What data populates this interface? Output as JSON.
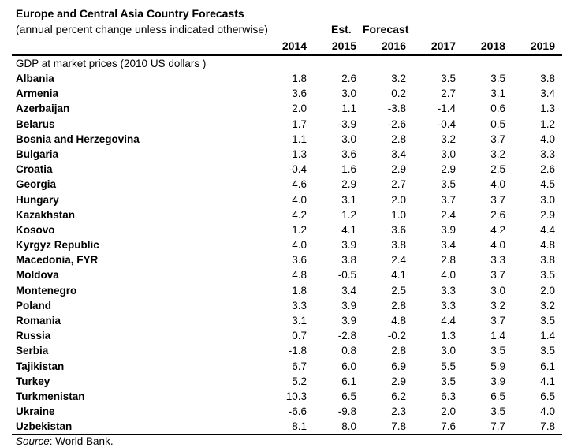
{
  "title": "Europe and Central Asia Country Forecasts",
  "subtitle": "(annual percent change unless indicated otherwise)",
  "header_est": "Est.",
  "header_forecast": "Forecast",
  "years": [
    "2014",
    "2015",
    "2016",
    "2017",
    "2018",
    "2019"
  ],
  "section_label": "GDP at market prices (2010 US dollars )",
  "rows": [
    {
      "country": "Albania",
      "values": [
        "1.8",
        "2.6",
        "3.2",
        "3.5",
        "3.5",
        "3.8"
      ]
    },
    {
      "country": "Armenia",
      "values": [
        "3.6",
        "3.0",
        "0.2",
        "2.7",
        "3.1",
        "3.4"
      ]
    },
    {
      "country": "Azerbaijan",
      "values": [
        "2.0",
        "1.1",
        "-3.8",
        "-1.4",
        "0.6",
        "1.3"
      ]
    },
    {
      "country": "Belarus",
      "values": [
        "1.7",
        "-3.9",
        "-2.6",
        "-0.4",
        "0.5",
        "1.2"
      ]
    },
    {
      "country": "Bosnia and Herzegovina",
      "values": [
        "1.1",
        "3.0",
        "2.8",
        "3.2",
        "3.7",
        "4.0"
      ]
    },
    {
      "country": "Bulgaria",
      "values": [
        "1.3",
        "3.6",
        "3.4",
        "3.0",
        "3.2",
        "3.3"
      ]
    },
    {
      "country": "Croatia",
      "values": [
        "-0.4",
        "1.6",
        "2.9",
        "2.9",
        "2.5",
        "2.6"
      ]
    },
    {
      "country": "Georgia",
      "values": [
        "4.6",
        "2.9",
        "2.7",
        "3.5",
        "4.0",
        "4.5"
      ]
    },
    {
      "country": "Hungary",
      "values": [
        "4.0",
        "3.1",
        "2.0",
        "3.7",
        "3.7",
        "3.0"
      ]
    },
    {
      "country": "Kazakhstan",
      "values": [
        "4.2",
        "1.2",
        "1.0",
        "2.4",
        "2.6",
        "2.9"
      ]
    },
    {
      "country": "Kosovo",
      "values": [
        "1.2",
        "4.1",
        "3.6",
        "3.9",
        "4.2",
        "4.4"
      ]
    },
    {
      "country": "Kyrgyz Republic",
      "values": [
        "4.0",
        "3.9",
        "3.8",
        "3.4",
        "4.0",
        "4.8"
      ]
    },
    {
      "country": "Macedonia, FYR",
      "values": [
        "3.6",
        "3.8",
        "2.4",
        "2.8",
        "3.3",
        "3.8"
      ]
    },
    {
      "country": "Moldova",
      "values": [
        "4.8",
        "-0.5",
        "4.1",
        "4.0",
        "3.7",
        "3.5"
      ]
    },
    {
      "country": "Montenegro",
      "values": [
        "1.8",
        "3.4",
        "2.5",
        "3.3",
        "3.0",
        "2.0"
      ]
    },
    {
      "country": "Poland",
      "values": [
        "3.3",
        "3.9",
        "2.8",
        "3.3",
        "3.2",
        "3.2"
      ]
    },
    {
      "country": "Romania",
      "values": [
        "3.1",
        "3.9",
        "4.8",
        "4.4",
        "3.7",
        "3.5"
      ]
    },
    {
      "country": "Russia",
      "values": [
        "0.7",
        "-2.8",
        "-0.2",
        "1.3",
        "1.4",
        "1.4"
      ]
    },
    {
      "country": "Serbia",
      "values": [
        "-1.8",
        "0.8",
        "2.8",
        "3.0",
        "3.5",
        "3.5"
      ]
    },
    {
      "country": "Tajikistan",
      "values": [
        "6.7",
        "6.0",
        "6.9",
        "5.5",
        "5.9",
        "6.1"
      ]
    },
    {
      "country": "Turkey",
      "values": [
        "5.2",
        "6.1",
        "2.9",
        "3.5",
        "3.9",
        "4.1"
      ]
    },
    {
      "country": "Turkmenistan",
      "values": [
        "10.3",
        "6.5",
        "6.2",
        "6.3",
        "6.5",
        "6.5"
      ]
    },
    {
      "country": "Ukraine",
      "values": [
        "-6.6",
        "-9.8",
        "2.3",
        "2.0",
        "3.5",
        "4.0"
      ]
    },
    {
      "country": "Uzbekistan",
      "values": [
        "8.1",
        "8.0",
        "7.8",
        "7.6",
        "7.7",
        "7.8"
      ]
    }
  ],
  "source_label": "Source",
  "source_text": ": World Bank."
}
